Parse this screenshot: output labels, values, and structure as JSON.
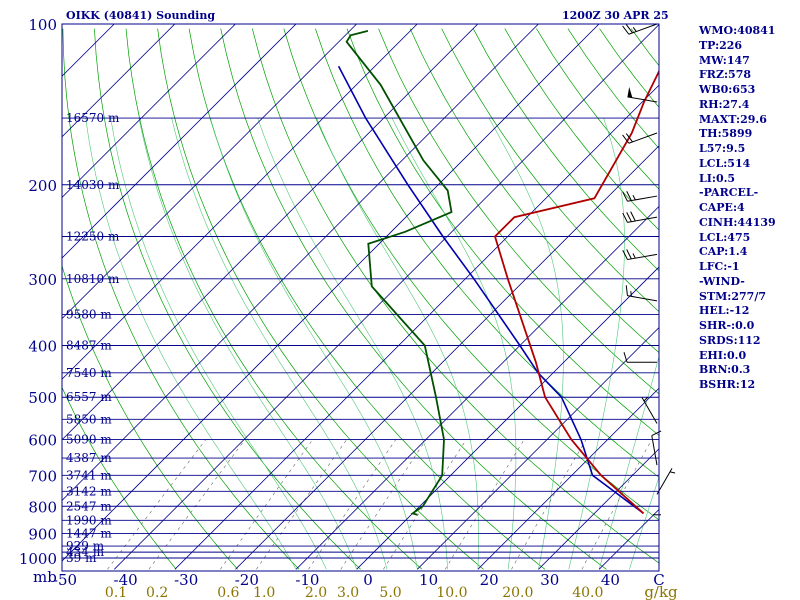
{
  "header": {
    "station": "OIKK (40841) Sounding",
    "time": "1200Z 30 APR 25"
  },
  "indices": [
    "WMO:40841",
    "TP:226",
    "MW:147",
    "FRZ:578",
    "WB0:653",
    "RH:27.4",
    "MAXT:29.6",
    "TH:5899",
    "L57:9.5",
    "LCL:514",
    "LI:0.5",
    "-PARCEL-",
    "CAPE:4",
    "CINH:44139",
    "LCL:475",
    "CAP:1.4",
    "LFC:-1",
    "-WIND-",
    "STM:277/7",
    "HEL:-12",
    "SHR-:0.0",
    "SRDS:112",
    "EHI:0.0",
    "BRN:0.3",
    "BSHR:12"
  ],
  "colors": {
    "isobar": "#00008b",
    "isotherm": "#00008b",
    "dry_adiabat": "#00a000",
    "moist_adiabat": "#50c878",
    "mixing_ratio": "#666666",
    "temperature": "#b00000",
    "dewpoint": "#005000",
    "parcel": "#0000b0",
    "label": "#00008b",
    "mixing_label": "#8b7500"
  },
  "chart_data": {
    "type": "skew-t log-p",
    "units_label": "mb",
    "mixing_units": "g/kg",
    "temp_axis_unit": "C",
    "pressure_levels": [
      {
        "p": 1000,
        "label": "1000",
        "height": "39 m"
      },
      {
        "p": 975,
        "label": "",
        "height": "434 m"
      },
      {
        "p": 950,
        "label": "",
        "height": "929 m"
      },
      {
        "p": 900,
        "label": "900",
        "height": "1447 m"
      },
      {
        "p": 850,
        "label": "",
        "height": "1990 m"
      },
      {
        "p": 800,
        "label": "800",
        "height": "2547 m"
      },
      {
        "p": 750,
        "label": "",
        "height": "3142 m"
      },
      {
        "p": 700,
        "label": "700",
        "height": "3741 m"
      },
      {
        "p": 650,
        "label": "",
        "height": "4387 m"
      },
      {
        "p": 600,
        "label": "600",
        "height": "5090 m"
      },
      {
        "p": 550,
        "label": "",
        "height": "5850 m"
      },
      {
        "p": 500,
        "label": "500",
        "height": "6557 m"
      },
      {
        "p": 450,
        "label": "",
        "height": "7540 m"
      },
      {
        "p": 400,
        "label": "400",
        "height": "8487 m"
      },
      {
        "p": 350,
        "label": "",
        "height": "9580 m"
      },
      {
        "p": 300,
        "label": "300",
        "height": "10810 m"
      },
      {
        "p": 250,
        "label": "",
        "height": "12250 m"
      },
      {
        "p": 200,
        "label": "200",
        "height": "14030 m"
      },
      {
        "p": 150,
        "label": "",
        "height": "16570 m"
      },
      {
        "p": 100,
        "label": "100",
        "height": ""
      }
    ],
    "temp_ticks": [
      -50,
      -40,
      -30,
      -20,
      -10,
      0,
      10,
      20,
      30,
      40
    ],
    "temp_tick_labels": [
      "-50",
      "-40",
      "-30",
      "-20",
      "-10",
      "0",
      "10",
      "20",
      "30",
      "40"
    ],
    "mixing_ratio_ticks": [
      "0.1",
      "0.2",
      "0.6",
      "1.0",
      "2.0",
      "3.0",
      "5.0",
      "10.0",
      "20.0",
      "40.0"
    ],
    "temperature": [
      {
        "p": 825,
        "t": 38.1
      },
      {
        "p": 700,
        "t": 24.8
      },
      {
        "p": 600,
        "t": 14.0
      },
      {
        "p": 500,
        "t": 2.7
      },
      {
        "p": 430,
        "t": -4.6
      },
      {
        "p": 300,
        "t": -23.0
      },
      {
        "p": 250,
        "t": -32.1
      },
      {
        "p": 230,
        "t": -32.1
      },
      {
        "p": 212,
        "t": -22.0
      },
      {
        "p": 160,
        "t": -26.6
      },
      {
        "p": 140,
        "t": -29.7
      },
      {
        "p": 110,
        "t": -34.4
      },
      {
        "p": 104,
        "t": -33.4
      },
      {
        "p": 100,
        "t": -32.0
      }
    ],
    "dewpoint": [
      {
        "p": 830,
        "t": 1.0
      },
      {
        "p": 825,
        "t": 0.0
      },
      {
        "p": 800,
        "t": 0.5
      },
      {
        "p": 700,
        "t": -1.4
      },
      {
        "p": 600,
        "t": -7.0
      },
      {
        "p": 500,
        "t": -15.3
      },
      {
        "p": 400,
        "t": -25.7
      },
      {
        "p": 310,
        "t": -44.2
      },
      {
        "p": 258,
        "t": -51.8
      },
      {
        "p": 245,
        "t": -47.7
      },
      {
        "p": 225,
        "t": -43.3
      },
      {
        "p": 205,
        "t": -47.5
      },
      {
        "p": 180,
        "t": -56.5
      },
      {
        "p": 130,
        "t": -76.0
      },
      {
        "p": 108,
        "t": -88.7
      },
      {
        "p": 105,
        "t": -89.1
      },
      {
        "p": 103,
        "t": -87.0
      }
    ],
    "parcel": [
      {
        "p": 825,
        "t": 38.1
      },
      {
        "p": 700,
        "t": 23.4
      },
      {
        "p": 600,
        "t": 15.6
      },
      {
        "p": 500,
        "t": 5.4
      },
      {
        "p": 450,
        "t": -2.5
      },
      {
        "p": 400,
        "t": -10.0
      },
      {
        "p": 300,
        "t": -28.6
      },
      {
        "p": 250,
        "t": -40.7
      },
      {
        "p": 200,
        "t": -55.0
      },
      {
        "p": 150,
        "t": -73.0
      },
      {
        "p": 120,
        "t": -86.0
      }
    ],
    "wind_barbs": [
      {
        "p": 100,
        "dir": 250,
        "spd": 25
      },
      {
        "p": 140,
        "dir": 280,
        "spd": 50
      },
      {
        "p": 160,
        "dir": 250,
        "spd": 20
      },
      {
        "p": 210,
        "dir": 260,
        "spd": 25
      },
      {
        "p": 230,
        "dir": 260,
        "spd": 30
      },
      {
        "p": 270,
        "dir": 260,
        "spd": 25
      },
      {
        "p": 330,
        "dir": 280,
        "spd": 15
      },
      {
        "p": 430,
        "dir": 270,
        "spd": 10
      },
      {
        "p": 560,
        "dir": 330,
        "spd": 5
      },
      {
        "p": 670,
        "dir": 350,
        "spd": 10
      },
      {
        "p": 760,
        "dir": 30,
        "spd": 5
      },
      {
        "p": 830,
        "dir": 0,
        "spd": 0
      }
    ]
  }
}
